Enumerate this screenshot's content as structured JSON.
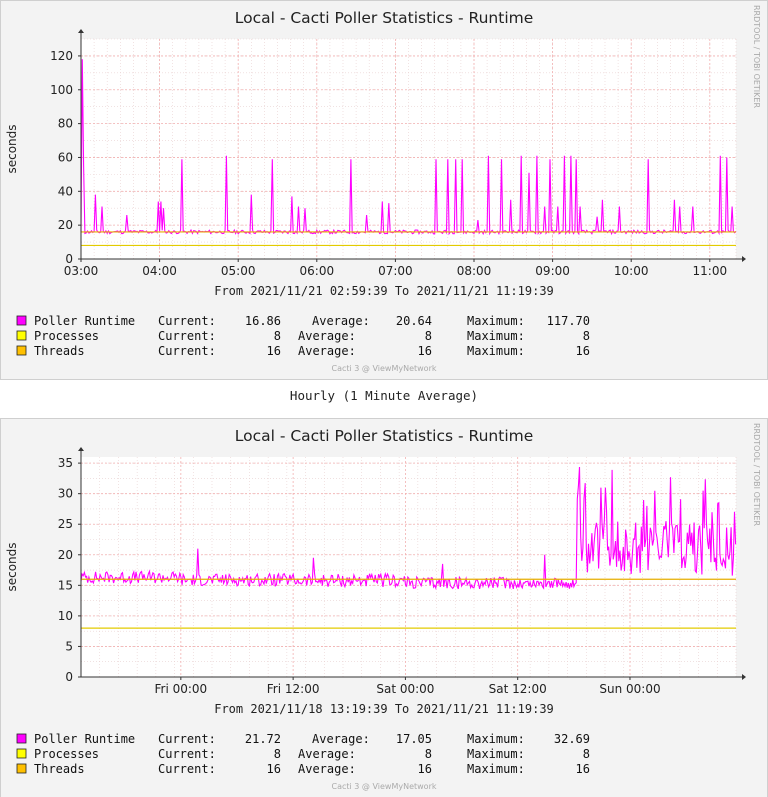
{
  "caption": "Hourly (1 Minute Average)",
  "colors": {
    "runtime": "#FF00FF",
    "processes": "#FFFF00",
    "threads": "#FFC000",
    "threads_line": "#E6AE00",
    "grid": "#F2B0B0",
    "axis": "#333333",
    "plot_bg": "#FFFFFF",
    "panel_bg": "#F3F3F3"
  },
  "chart_data": [
    {
      "type": "line",
      "title": "Local - Cacti Poller Statistics - Runtime",
      "ylabel": "seconds",
      "ylim": [
        0,
        130
      ],
      "yticks": [
        0,
        20,
        40,
        60,
        80,
        100,
        120
      ],
      "xlim_minutes": [
        0,
        500
      ],
      "xticks": [
        {
          "label": "03:00",
          "t": 0
        },
        {
          "label": "04:00",
          "t": 60
        },
        {
          "label": "05:00",
          "t": 120
        },
        {
          "label": "06:00",
          "t": 180
        },
        {
          "label": "07:00",
          "t": 240
        },
        {
          "label": "08:00",
          "t": 300
        },
        {
          "label": "09:00",
          "t": 360
        },
        {
          "label": "10:00",
          "t": 420
        },
        {
          "label": "11:00",
          "t": 480
        }
      ],
      "range_text": "From 2021/11/21 02:59:39 To 2021/11/21 11:19:39",
      "watermark": "RRDTOOL / TOBI OETIKER",
      "footer": "Cacti 3 @ ViewMyNetwork",
      "grid": true,
      "series": [
        {
          "name": "Poller Runtime",
          "kind": "runtime",
          "baseline": 16,
          "spikes": [
            [
              1,
              118
            ],
            [
              2,
              55
            ],
            [
              11,
              38
            ],
            [
              16,
              31
            ],
            [
              35,
              26
            ],
            [
              59,
              34
            ],
            [
              61,
              34
            ],
            [
              63,
              30
            ],
            [
              77,
              59
            ],
            [
              111,
              61
            ],
            [
              130,
              38
            ],
            [
              146,
              59
            ],
            [
              161,
              37
            ],
            [
              166,
              31
            ],
            [
              171,
              30
            ],
            [
              206,
              59
            ],
            [
              218,
              26
            ],
            [
              230,
              34
            ],
            [
              235,
              33
            ],
            [
              271,
              59
            ],
            [
              280,
              59
            ],
            [
              286,
              59
            ],
            [
              291,
              59
            ],
            [
              303,
              23
            ],
            [
              311,
              61
            ],
            [
              321,
              59
            ],
            [
              328,
              35
            ],
            [
              336,
              61
            ],
            [
              342,
              51
            ],
            [
              348,
              61
            ],
            [
              354,
              31
            ],
            [
              358,
              59
            ],
            [
              364,
              31
            ],
            [
              369,
              61
            ],
            [
              374,
              61
            ],
            [
              378,
              59
            ],
            [
              381,
              31
            ],
            [
              394,
              25
            ],
            [
              398,
              35
            ],
            [
              411,
              31
            ],
            [
              433,
              59
            ],
            [
              453,
              35
            ],
            [
              457,
              31
            ],
            [
              467,
              31
            ],
            [
              488,
              61
            ],
            [
              493,
              60
            ],
            [
              497,
              31
            ]
          ]
        },
        {
          "name": "Processes",
          "kind": "flat",
          "value": 8
        },
        {
          "name": "Threads",
          "kind": "flat",
          "value": 16
        }
      ],
      "legend": [
        {
          "name": "Poller Runtime",
          "color": "#FF00FF",
          "current_label": "Current:",
          "current": "16.86",
          "average_label": "Average:",
          "average": "20.64",
          "maximum_label": "Maximum:",
          "maximum": "117.70"
        },
        {
          "name": "Processes",
          "color": "#FFFF00",
          "current_label": "Current:",
          "current": "8",
          "average_label": "Average:",
          "average": "8",
          "maximum_label": "Maximum:",
          "maximum": "8"
        },
        {
          "name": "Threads",
          "color": "#FFC000",
          "current_label": "Current:",
          "current": "16",
          "average_label": "Average:",
          "average": "16",
          "maximum_label": "Maximum:",
          "maximum": "16"
        }
      ]
    },
    {
      "type": "line",
      "title": "Local - Cacti Poller Statistics - Runtime",
      "ylabel": "seconds",
      "ylim": [
        0,
        36
      ],
      "yticks": [
        0,
        5,
        10,
        15,
        20,
        25,
        30,
        35
      ],
      "xlim_hours": [
        0,
        70
      ],
      "xticks": [
        {
          "label": "Fri 00:00",
          "t": 10.67
        },
        {
          "label": "Fri 12:00",
          "t": 22.67
        },
        {
          "label": "Sat 00:00",
          "t": 34.67
        },
        {
          "label": "Sat 12:00",
          "t": 46.67
        },
        {
          "label": "Sun 00:00",
          "t": 58.67
        }
      ],
      "range_text": "From 2021/11/18 13:19:39 To 2021/11/21 11:19:39",
      "watermark": "RRDTOOL / TOBI OETIKER",
      "footer": "Cacti 3 @ ViewMyNetwork",
      "grid": true,
      "series": [
        {
          "name": "Poller Runtime",
          "kind": "noisy",
          "segments": [
            {
              "from": 0,
              "to": 10.67,
              "value": 16.3,
              "noise": 1.0
            },
            {
              "from": 10.67,
              "to": 22.67,
              "value": 15.9,
              "noise": 1.0
            },
            {
              "from": 22.67,
              "to": 34.67,
              "value": 15.8,
              "noise": 1.1
            },
            {
              "from": 34.67,
              "to": 46.67,
              "value": 15.4,
              "noise": 1.0
            },
            {
              "from": 46.67,
              "to": 53.0,
              "value": 15.3,
              "noise": 0.9
            },
            {
              "from": 53.0,
              "to": 70.0,
              "value": 21.0,
              "noise": 4.5
            }
          ],
          "peaks": [
            [
              12.5,
              21
            ],
            [
              24.8,
              19.5
            ],
            [
              38.6,
              18.5
            ],
            [
              49.5,
              20
            ],
            [
              55.5,
              31
            ],
            [
              56.0,
              31
            ],
            [
              60.5,
              28
            ],
            [
              63.0,
              32.7
            ],
            [
              66.5,
              30.5
            ],
            [
              68.2,
              28.5
            ],
            [
              69.5,
              24.5
            ]
          ],
          "last": 21.72
        },
        {
          "name": "Processes",
          "kind": "flat",
          "value": 8
        },
        {
          "name": "Threads",
          "kind": "step",
          "segments": [
            {
              "from": 0,
              "to": 52.7,
              "value": 16
            },
            {
              "from": 52.7,
              "to": 70,
              "value": 16
            }
          ]
        }
      ],
      "legend": [
        {
          "name": "Poller Runtime",
          "color": "#FF00FF",
          "current_label": "Current:",
          "current": "21.72",
          "average_label": "Average:",
          "average": "17.05",
          "maximum_label": "Maximum:",
          "maximum": "32.69"
        },
        {
          "name": "Processes",
          "color": "#FFFF00",
          "current_label": "Current:",
          "current": "8",
          "average_label": "Average:",
          "average": "8",
          "maximum_label": "Maximum:",
          "maximum": "8"
        },
        {
          "name": "Threads",
          "color": "#FFC000",
          "current_label": "Current:",
          "current": "16",
          "average_label": "Average:",
          "average": "16",
          "maximum_label": "Maximum:",
          "maximum": "16"
        }
      ]
    }
  ]
}
